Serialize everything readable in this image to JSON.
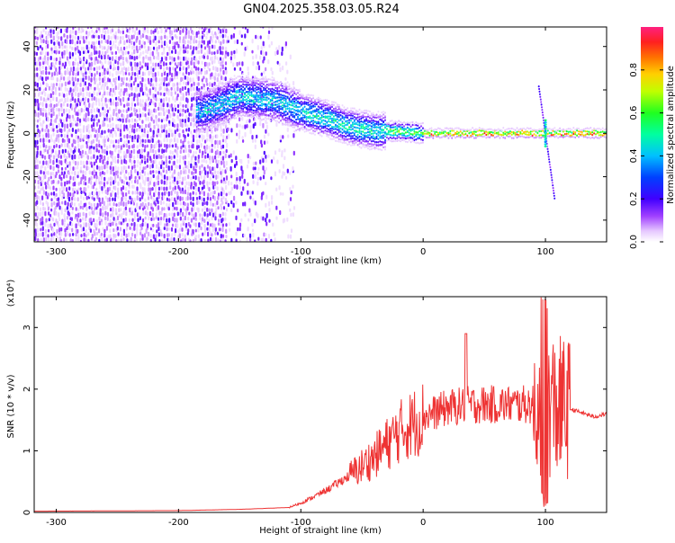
{
  "title": "GN04.2025.358.03.05.R24",
  "chart_data": [
    {
      "type": "heatmap",
      "title": "GN04.2025.358.03.05.R24",
      "xlabel": "Height of straight line (km)",
      "ylabel": "Frequency (Hz)",
      "xlim": [
        -318,
        150
      ],
      "ylim": [
        -50,
        49
      ],
      "xticks": [
        -300,
        -200,
        -100,
        0,
        100
      ],
      "yticks": [
        -40,
        -20,
        0,
        20,
        40
      ],
      "colorbar": {
        "label": "Normalized spectral amplitude",
        "range": [
          0,
          1
        ],
        "ticks": [
          0.0,
          0.2,
          0.4,
          0.6,
          0.8
        ]
      },
      "ridge": {
        "description": "dominant frequency vs height",
        "x": [
          -180,
          -150,
          -120,
          -100,
          -80,
          -60,
          -40,
          -20,
          0,
          50,
          100,
          150
        ],
        "y": [
          10,
          17,
          15,
          10,
          7,
          3,
          1,
          1,
          0,
          0,
          0,
          0
        ]
      }
    },
    {
      "type": "line",
      "xlabel": "Height of straight line (km)",
      "ylabel": "SNR (10 * v/v)",
      "yscale_label": "(x10⁴)",
      "xlim": [
        -318,
        150
      ],
      "ylim": [
        0,
        3.5
      ],
      "xticks": [
        -300,
        -200,
        -100,
        0,
        100
      ],
      "yticks": [
        0,
        1,
        2,
        3
      ],
      "color": "#ee3333",
      "series": [
        {
          "name": "SNR",
          "envelope_x": [
            -318,
            -200,
            -150,
            -110,
            -100,
            -80,
            -60,
            -40,
            -20,
            0,
            20,
            40,
            60,
            80,
            95,
            100,
            110,
            120,
            140,
            150
          ],
          "envelope_y": [
            0.02,
            0.03,
            0.05,
            0.08,
            0.15,
            0.35,
            0.6,
            0.9,
            1.3,
            1.55,
            1.7,
            1.75,
            1.75,
            1.75,
            1.75,
            1.8,
            1.7,
            1.68,
            1.55,
            1.6
          ]
        }
      ]
    }
  ]
}
